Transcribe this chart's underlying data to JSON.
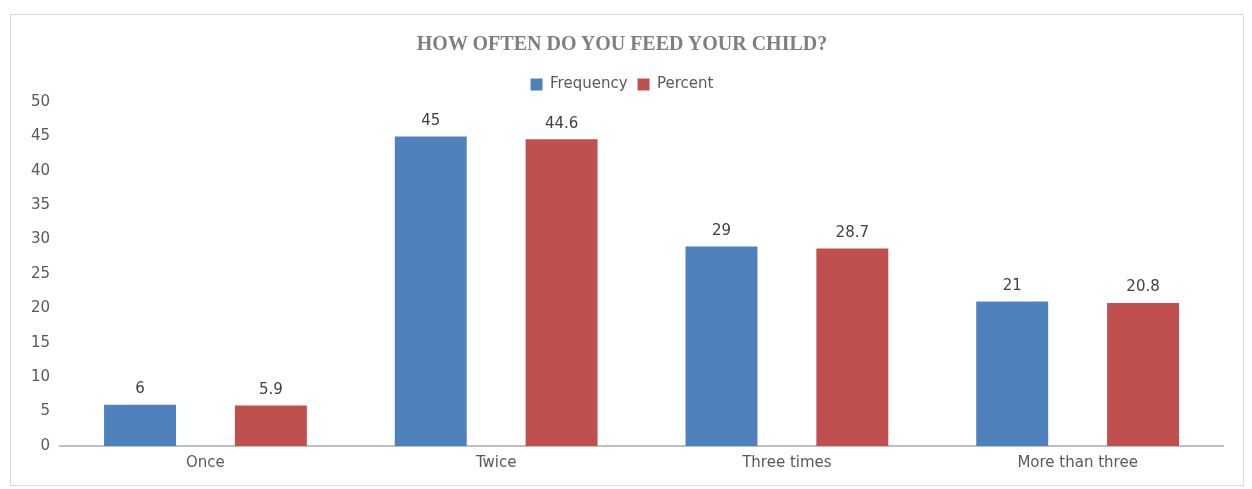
{
  "chart_data": {
    "type": "bar",
    "title": "HOW OFTEN DO YOU FEED YOUR CHILD?",
    "categories": [
      "Once",
      "Twice",
      "Three times",
      "More than three"
    ],
    "series": [
      {
        "name": "Frequency",
        "color": "#4f81bd",
        "values": [
          6,
          45,
          29,
          21
        ]
      },
      {
        "name": "Percent",
        "color": "#c0504d",
        "values": [
          5.9,
          44.6,
          28.7,
          20.8
        ]
      }
    ],
    "ylim": [
      0,
      50
    ],
    "yticks": [
      0,
      5,
      10,
      15,
      20,
      25,
      30,
      35,
      40,
      45,
      50
    ],
    "grid": false,
    "legend": "top",
    "data_labels": true
  }
}
